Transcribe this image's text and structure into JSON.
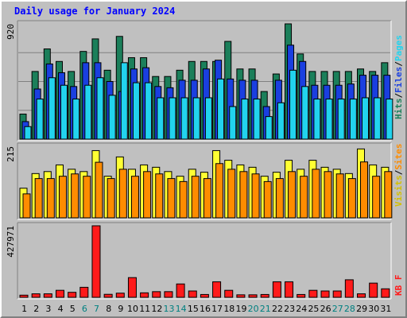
{
  "title": "Daily usage for January 2024",
  "colors": {
    "hits": "#1b7f5a",
    "files": "#1a3fe0",
    "pages": "#22d3ee",
    "visits": "#ffff33",
    "sites": "#ff8c00",
    "kbf": "#ff1a1a",
    "weekend_label": "#008080",
    "weekday_label": "#000000",
    "panel_bg": "#c0c0c0"
  },
  "legends": {
    "top": [
      {
        "text": "Hits",
        "color": "#1b7f5a"
      },
      {
        "text": "/",
        "color": "#000000"
      },
      {
        "text": "Files",
        "color": "#1a3fe0"
      },
      {
        "text": "/",
        "color": "#000000"
      },
      {
        "text": "Pages",
        "color": "#22d3ee"
      }
    ],
    "middle": [
      {
        "text": "Visits",
        "color": "#d4c000"
      },
      {
        "text": "/",
        "color": "#000000"
      },
      {
        "text": "Sites",
        "color": "#ff8c00"
      }
    ],
    "bottom": [
      {
        "text": "KB F",
        "color": "#ff1a1a"
      }
    ]
  },
  "chart_data": [
    {
      "type": "bar",
      "panel": "hits-files-pages",
      "ymax_label": "920",
      "ylim": [
        0,
        920
      ],
      "x": [
        "1",
        "2",
        "3",
        "4",
        "5",
        "6",
        "7",
        "8",
        "9",
        "10",
        "11",
        "12",
        "13",
        "14",
        "15",
        "16",
        "17",
        "18",
        "19",
        "20",
        "21",
        "22",
        "23",
        "24",
        "25",
        "26",
        "27",
        "28",
        "29",
        "30",
        "31"
      ],
      "weekend_days": [
        "6",
        "7",
        "13",
        "14",
        "20",
        "21",
        "27",
        "28"
      ],
      "series": [
        {
          "name": "Hits",
          "values": [
            200,
            540,
            720,
            620,
            540,
            700,
            800,
            550,
            820,
            650,
            650,
            500,
            500,
            550,
            620,
            620,
            620,
            780,
            560,
            560,
            380,
            520,
            920,
            680,
            540,
            540,
            540,
            540,
            560,
            540,
            610
          ]
        },
        {
          "name": "Files",
          "values": [
            140,
            400,
            600,
            530,
            420,
            610,
            610,
            460,
            380,
            560,
            570,
            420,
            410,
            470,
            470,
            560,
            630,
            480,
            470,
            470,
            260,
            470,
            750,
            620,
            430,
            430,
            430,
            440,
            510,
            510,
            510
          ]
        },
        {
          "name": "Pages",
          "values": [
            100,
            320,
            490,
            430,
            320,
            430,
            490,
            350,
            610,
            450,
            450,
            330,
            330,
            330,
            330,
            330,
            480,
            260,
            320,
            320,
            180,
            290,
            550,
            420,
            320,
            320,
            320,
            320,
            330,
            330,
            320
          ]
        }
      ]
    },
    {
      "type": "bar",
      "panel": "visits-sites",
      "ymax_label": "215",
      "ylim": [
        0,
        215
      ],
      "x": [
        "1",
        "2",
        "3",
        "4",
        "5",
        "6",
        "7",
        "8",
        "9",
        "10",
        "11",
        "12",
        "13",
        "14",
        "15",
        "16",
        "17",
        "18",
        "19",
        "20",
        "21",
        "22",
        "23",
        "24",
        "25",
        "26",
        "27",
        "28",
        "29",
        "30",
        "31"
      ],
      "series": [
        {
          "name": "Visits",
          "values": [
            89,
            133,
            139,
            159,
            146,
            139,
            202,
            125,
            183,
            146,
            159,
            152,
            139,
            125,
            146,
            137,
            202,
            173,
            159,
            152,
            125,
            137,
            173,
            146,
            173,
            152,
            146,
            133,
            207,
            159,
            152
          ]
        },
        {
          "name": "Sites",
          "values": [
            72,
            118,
            118,
            125,
            132,
            125,
            167,
            118,
            146,
            125,
            139,
            132,
            118,
            109,
            125,
            118,
            163,
            146,
            139,
            132,
            109,
            118,
            139,
            125,
            146,
            139,
            132,
            118,
            168,
            125,
            139
          ]
        }
      ]
    },
    {
      "type": "bar",
      "panel": "kb-f",
      "ymax_label": "427971",
      "ylim": [
        0,
        427971
      ],
      "x": [
        "1",
        "2",
        "3",
        "4",
        "5",
        "6",
        "7",
        "8",
        "9",
        "10",
        "11",
        "12",
        "13",
        "14",
        "15",
        "16",
        "17",
        "18",
        "19",
        "20",
        "21",
        "22",
        "23",
        "24",
        "25",
        "26",
        "27",
        "28",
        "29",
        "30",
        "31"
      ],
      "series": [
        {
          "name": "KB F",
          "values": [
            13000,
            21000,
            21000,
            42000,
            30000,
            60000,
            427971,
            18000,
            25000,
            118000,
            27000,
            34000,
            34000,
            80000,
            38000,
            17000,
            93000,
            42000,
            15000,
            15000,
            17000,
            93000,
            93000,
            17000,
            42000,
            38000,
            38000,
            105000,
            21000,
            85000,
            51000
          ]
        }
      ]
    }
  ]
}
